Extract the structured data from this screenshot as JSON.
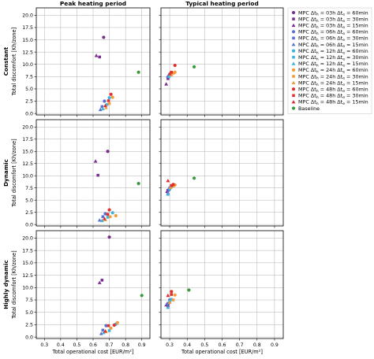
{
  "chart_data": {
    "type": "scatter",
    "column_titles": [
      "Peak heating period",
      "Typical heating period"
    ],
    "row_titles": [
      "Constant",
      "Dynamic",
      "Highly dynamic"
    ],
    "xlabel": "Total operational cost [EUR/m²]",
    "ylabel": "Total discomfort [Kh/zone]",
    "xlim": [
      0.25,
      0.95
    ],
    "ylim": [
      -0.3,
      21.5
    ],
    "xticks": [
      "0.3",
      "0.4",
      "0.5",
      "0.6",
      "0.7",
      "0.8",
      "0.9"
    ],
    "yticks": [
      "0.0",
      "2.5",
      "5.0",
      "7.5",
      "10.0",
      "12.5",
      "15.0",
      "17.5",
      "20.0"
    ],
    "grid": true,
    "sharey": true,
    "legend_position": "right",
    "series": [
      {
        "name": "MPC Δt_h = 03h Δt_e = 60min",
        "color": "#7b2d8e",
        "marker": "circle",
        "panels": [
          [
            [
              0.665,
              15.5
            ]
          ],
          [
            [
              0.29,
              7.4
            ]
          ],
          [
            [
              0.69,
              15.0
            ]
          ],
          [
            [
              0.3,
              7.3
            ]
          ],
          [
            [
              0.7,
              20.2
            ]
          ],
          [
            [
              0.29,
              6.7
            ]
          ]
        ]
      },
      {
        "name": "MPC Δt_h = 03h Δt_e = 30min",
        "color": "#7b2d8e",
        "marker": "square",
        "panels": [
          [
            [
              0.64,
              11.5
            ]
          ],
          [
            [
              0.29,
              7.1
            ]
          ],
          [
            [
              0.63,
              10.1
            ]
          ],
          [
            [
              0.29,
              7.0
            ]
          ],
          [
            [
              0.655,
              11.5
            ]
          ],
          [
            [
              0.29,
              6.3
            ]
          ]
        ]
      },
      {
        "name": "MPC Δt_h = 03h Δt_e = 15min",
        "color": "#7b2d8e",
        "marker": "triangle",
        "panels": [
          [
            [
              0.62,
              11.8
            ]
          ],
          [
            [
              0.28,
              6.0
            ]
          ],
          [
            [
              0.615,
              13.0
            ]
          ],
          [
            [
              0.285,
              6.8
            ]
          ],
          [
            [
              0.64,
              11.0
            ]
          ],
          [
            [
              0.28,
              6.5
            ]
          ]
        ]
      },
      {
        "name": "MPC Δt_h = 06h Δt_e = 60min",
        "color": "#5b6fd0",
        "marker": "circle",
        "panels": [
          [
            [
              0.67,
              2.5
            ]
          ],
          [
            [
              0.3,
              8.0
            ]
          ],
          [
            [
              0.675,
              2.2
            ]
          ],
          [
            [
              0.3,
              7.5
            ]
          ],
          [
            [
              0.68,
              2.3
            ]
          ],
          [
            [
              0.3,
              7.5
            ]
          ]
        ]
      },
      {
        "name": "MPC Δt_h = 06h Δt_e = 30min",
        "color": "#5b6fd0",
        "marker": "square",
        "panels": [
          [
            [
              0.655,
              1.4
            ]
          ],
          [
            [
              0.3,
              7.8
            ]
          ],
          [
            [
              0.66,
              1.6
            ]
          ],
          [
            [
              0.295,
              7.1
            ]
          ],
          [
            [
              0.66,
              1.4
            ]
          ],
          [
            [
              0.29,
              6.8
            ]
          ]
        ]
      },
      {
        "name": "MPC Δt_h = 06h Δt_e = 15min",
        "color": "#5b6fd0",
        "marker": "triangle",
        "panels": [
          [
            [
              0.645,
              0.8
            ]
          ],
          [
            [
              0.29,
              7.6
            ]
          ],
          [
            [
              0.64,
              0.9
            ]
          ],
          [
            [
              0.29,
              6.5
            ]
          ],
          [
            [
              0.65,
              0.7
            ]
          ],
          [
            [
              0.285,
              6.7
            ]
          ]
        ]
      },
      {
        "name": "MPC Δt_h = 12h Δt_e = 60min",
        "color": "#3bb3e0",
        "marker": "circle",
        "panels": [
          [
            [
              0.7,
              3.2
            ]
          ],
          [
            [
              0.31,
              8.2
            ]
          ],
          [
            [
              0.72,
              2.4
            ]
          ],
          [
            [
              0.31,
              7.8
            ]
          ],
          [
            [
              0.74,
              2.6
            ]
          ],
          [
            [
              0.31,
              7.6
            ]
          ]
        ]
      },
      {
        "name": "MPC Δt_h = 12h Δt_e = 30min",
        "color": "#3bb3e0",
        "marker": "square",
        "panels": [
          [
            [
              0.685,
              1.8
            ]
          ],
          [
            [
              0.3,
              7.9
            ]
          ],
          [
            [
              0.69,
              1.5
            ]
          ],
          [
            [
              0.3,
              7.3
            ]
          ],
          [
            [
              0.7,
              1.3
            ]
          ],
          [
            [
              0.3,
              7.2
            ]
          ]
        ]
      },
      {
        "name": "MPC Δt_h = 12h Δt_e = 15min",
        "color": "#3bb3e0",
        "marker": "triangle",
        "panels": [
          [
            [
              0.66,
              1.0
            ]
          ],
          [
            [
              0.295,
              7.5
            ]
          ],
          [
            [
              0.655,
              0.8
            ]
          ],
          [
            [
              0.29,
              6.2
            ]
          ],
          [
            [
              0.665,
              0.9
            ]
          ],
          [
            [
              0.29,
              6.0
            ]
          ]
        ]
      },
      {
        "name": "MPC Δt_h = 24h Δt_e = 60min",
        "color": "#f39a3a",
        "marker": "circle",
        "panels": [
          [
            [
              0.72,
              3.3
            ]
          ],
          [
            [
              0.33,
              8.4
            ]
          ],
          [
            [
              0.74,
              1.8
            ]
          ],
          [
            [
              0.33,
              8.1
            ]
          ],
          [
            [
              0.75,
              2.9
            ]
          ],
          [
            [
              0.33,
              8.5
            ]
          ]
        ]
      },
      {
        "name": "MPC Δt_h = 24h Δt_e = 30min",
        "color": "#f39a3a",
        "marker": "square",
        "panels": [
          [
            [
              0.7,
              2.0
            ]
          ],
          [
            [
              0.32,
              8.2
            ]
          ],
          [
            [
              0.705,
              1.6
            ]
          ],
          [
            [
              0.32,
              7.9
            ]
          ],
          [
            [
              0.71,
              1.8
            ]
          ],
          [
            [
              0.32,
              7.5
            ]
          ]
        ]
      },
      {
        "name": "MPC Δt_h = 24h Δt_e = 15min",
        "color": "#f39a3a",
        "marker": "triangle",
        "panels": [
          [
            [
              0.68,
              1.2
            ]
          ],
          [
            [
              0.31,
              7.9
            ]
          ],
          [
            [
              0.675,
              1.0
            ]
          ],
          [
            [
              0.305,
              7.6
            ]
          ],
          [
            [
              0.68,
              1.1
            ]
          ],
          [
            [
              0.3,
              7.0
            ]
          ]
        ]
      },
      {
        "name": "MPC Δt_h = 48h Δt_e = 60min",
        "color": "#e0302e",
        "marker": "circle",
        "panels": [
          [
            [
              0.71,
              3.9
            ]
          ],
          [
            [
              0.33,
              9.8
            ]
          ],
          [
            [
              0.7,
              3.0
            ]
          ],
          [
            [
              0.32,
              8.2
            ]
          ],
          [
            [
              0.73,
              2.4
            ]
          ],
          [
            [
              0.31,
              9.2
            ]
          ]
        ]
      },
      {
        "name": "MPC Δt_h = 48h Δt_e = 30min",
        "color": "#e0302e",
        "marker": "square",
        "panels": [
          [
            [
              0.695,
              2.6
            ]
          ],
          [
            [
              0.31,
              8.4
            ]
          ],
          [
            [
              0.69,
              2.1
            ]
          ],
          [
            [
              0.31,
              8.0
            ]
          ],
          [
            [
              0.695,
              2.3
            ]
          ],
          [
            [
              0.31,
              8.6
            ]
          ]
        ]
      },
      {
        "name": "MPC Δt_h = 48h Δt_e = 15min",
        "color": "#e0302e",
        "marker": "triangle",
        "panels": [
          [
            [
              0.675,
              1.6
            ]
          ],
          [
            [
              0.3,
              8.1
            ]
          ],
          [
            [
              0.67,
              1.2
            ]
          ],
          [
            [
              0.29,
              9.0
            ]
          ],
          [
            [
              0.675,
              1.2
            ]
          ],
          [
            [
              0.29,
              8.4
            ]
          ]
        ]
      },
      {
        "name": "Baseline",
        "color": "#3a9a3c",
        "marker": "circle",
        "panels": [
          [
            [
              0.88,
              8.4
            ]
          ],
          [
            [
              0.44,
              9.5
            ]
          ],
          [
            [
              0.88,
              8.4
            ]
          ],
          [
            [
              0.44,
              9.5
            ]
          ],
          [
            [
              0.9,
              8.4
            ]
          ],
          [
            [
              0.41,
              9.5
            ]
          ]
        ]
      }
    ]
  }
}
